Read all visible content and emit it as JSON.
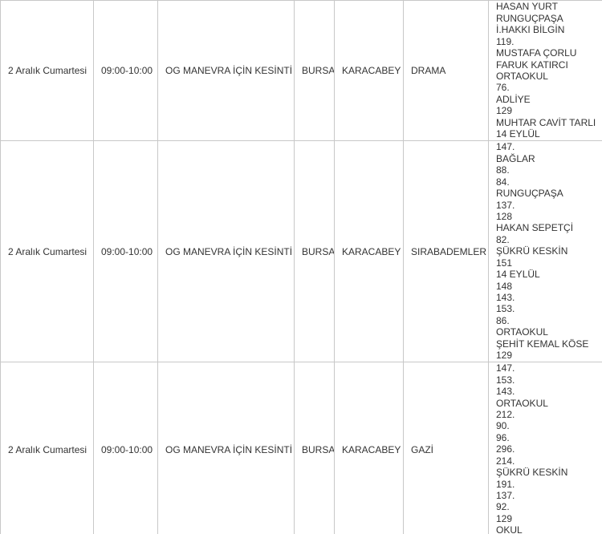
{
  "table": {
    "rows": [
      [
        "2 Aralık Cumartesi",
        "09:00-10:00",
        "OG MANEVRA İÇİN KESİNTİ",
        "BURSA",
        "KARACABEY",
        "DRAMA",
        [
          "HASAN YURT",
          "RUNGUÇPAŞA",
          "İ.HAKKI BİLGİN",
          "119.",
          "MUSTAFA ÇORLU",
          "FARUK KATIRCI",
          "ORTAOKUL",
          "76.",
          "ADLİYE",
          "129",
          "MUHTAR CAVİT TARLI",
          "14 EYLÜL"
        ]
      ],
      [
        "2 Aralık Cumartesi",
        "09:00-10:00",
        "OG MANEVRA İÇİN KESİNTİ",
        "BURSA",
        "KARACABEY",
        "SIRABADEMLER",
        [
          "147.",
          "BAĞLAR",
          "88.",
          "84.",
          "RUNGUÇPAŞA",
          "137.",
          "128",
          "HAKAN SEPETÇİ",
          "82.",
          "ŞÜKRÜ KESKİN",
          "151",
          "14 EYLÜL",
          "148",
          "143.",
          "153.",
          "86.",
          "ORTAOKUL",
          "ŞEHİT KEMAL KÖSE",
          "129"
        ]
      ],
      [
        "2 Aralık Cumartesi",
        "09:00-10:00",
        "OG MANEVRA İÇİN KESİNTİ",
        "BURSA",
        "KARACABEY",
        "GAZİ",
        [
          "147.",
          "153.",
          "143.",
          "ORTAOKUL",
          "212.",
          "90.",
          "96.",
          "296.",
          "214.",
          "ŞÜKRÜ KESKİN",
          "191.",
          "137.",
          "92.",
          "129",
          "OKUL"
        ]
      ]
    ]
  }
}
